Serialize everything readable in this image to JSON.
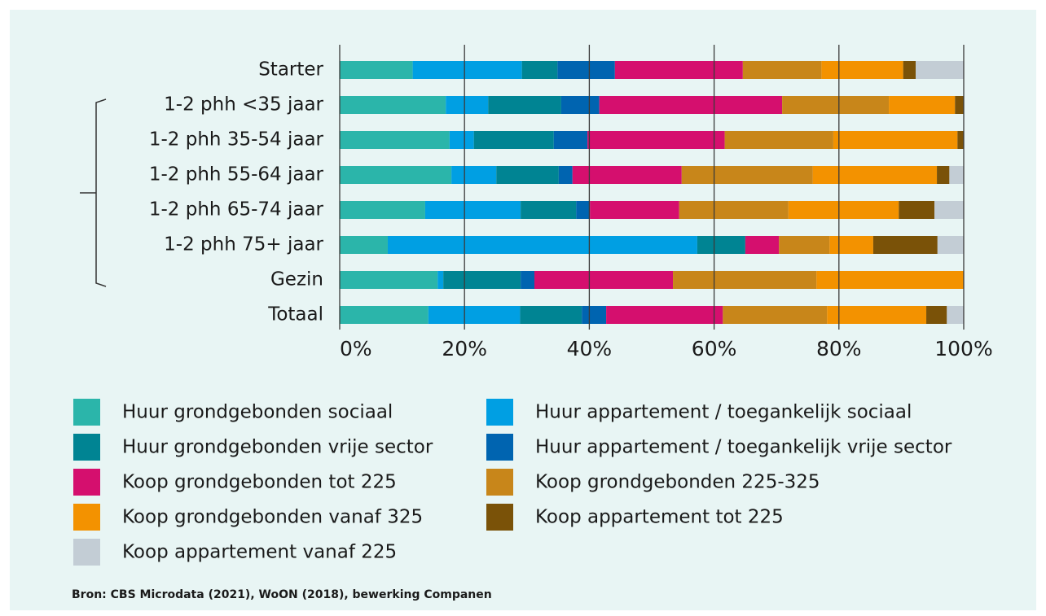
{
  "chart_data": {
    "type": "stacked-bar-horizontal",
    "categories": [
      "Starter",
      "1-2 phh <35 jaar",
      "1-2 phh 35-54 jaar",
      "1-2 phh 55-64 jaar",
      "1-2 phh 65-74 jaar",
      "1-2 phh 75+ jaar",
      "Gezin",
      "Totaal"
    ],
    "series": [
      {
        "name": "Huur grondgebonden sociaal",
        "color": "#2bb5aa",
        "values": [
          11.7,
          17.0,
          17.6,
          17.9,
          13.7,
          7.7,
          15.7,
          14.2
        ]
      },
      {
        "name": "Huur appartement / toegankelijk sociaal",
        "color": "#009fe3",
        "values": [
          17.5,
          6.8,
          3.9,
          7.2,
          15.3,
          49.6,
          0.9,
          14.7
        ]
      },
      {
        "name": "Huur grondgebonden vrije sector",
        "color": "#008493",
        "values": [
          5.7,
          11.7,
          12.8,
          10.0,
          8.9,
          7.7,
          12.4,
          9.9
        ]
      },
      {
        "name": "Huur appartement / toegankelijk vrije sector",
        "color": "#0064b0",
        "values": [
          9.2,
          6.1,
          5.4,
          2.2,
          2.2,
          0,
          2.2,
          3.9
        ]
      },
      {
        "name": "Koop grondgebonden tot 225",
        "color": "#d50f6e",
        "values": [
          20.5,
          29.3,
          22.0,
          17.5,
          14.3,
          5.4,
          22.2,
          18.7
        ]
      },
      {
        "name": "Koop grondgebonden 225-325",
        "color": "#c8861a",
        "values": [
          12.6,
          17.1,
          17.4,
          21.0,
          17.5,
          8.1,
          23.0,
          16.7
        ]
      },
      {
        "name": "Koop grondgebonden vanaf 325",
        "color": "#f39200",
        "values": [
          13.1,
          10.6,
          19.9,
          19.9,
          17.7,
          7.0,
          23.6,
          15.9
        ]
      },
      {
        "name": "Koop appartement tot 225",
        "color": "#7a5208",
        "values": [
          2.0,
          1.4,
          1.0,
          2.0,
          5.7,
          10.3,
          0,
          3.3
        ]
      },
      {
        "name": "Koop appartement vanaf 225",
        "color": "#c3cdd5",
        "values": [
          7.7,
          0,
          0,
          2.3,
          4.7,
          4.2,
          0,
          2.7
        ]
      }
    ],
    "xlim": [
      0,
      100
    ],
    "xticks": [
      {
        "value": 0,
        "label": "0%"
      },
      {
        "value": 20,
        "label": "20%"
      },
      {
        "value": 40,
        "label": "40%"
      },
      {
        "value": 60,
        "label": "60%"
      },
      {
        "value": 80,
        "label": "80%"
      },
      {
        "value": 100,
        "label": "100%"
      }
    ],
    "grid": true,
    "source": "Bron: CBS Microdata (2021), WoON (2018), bewerking Companen"
  }
}
